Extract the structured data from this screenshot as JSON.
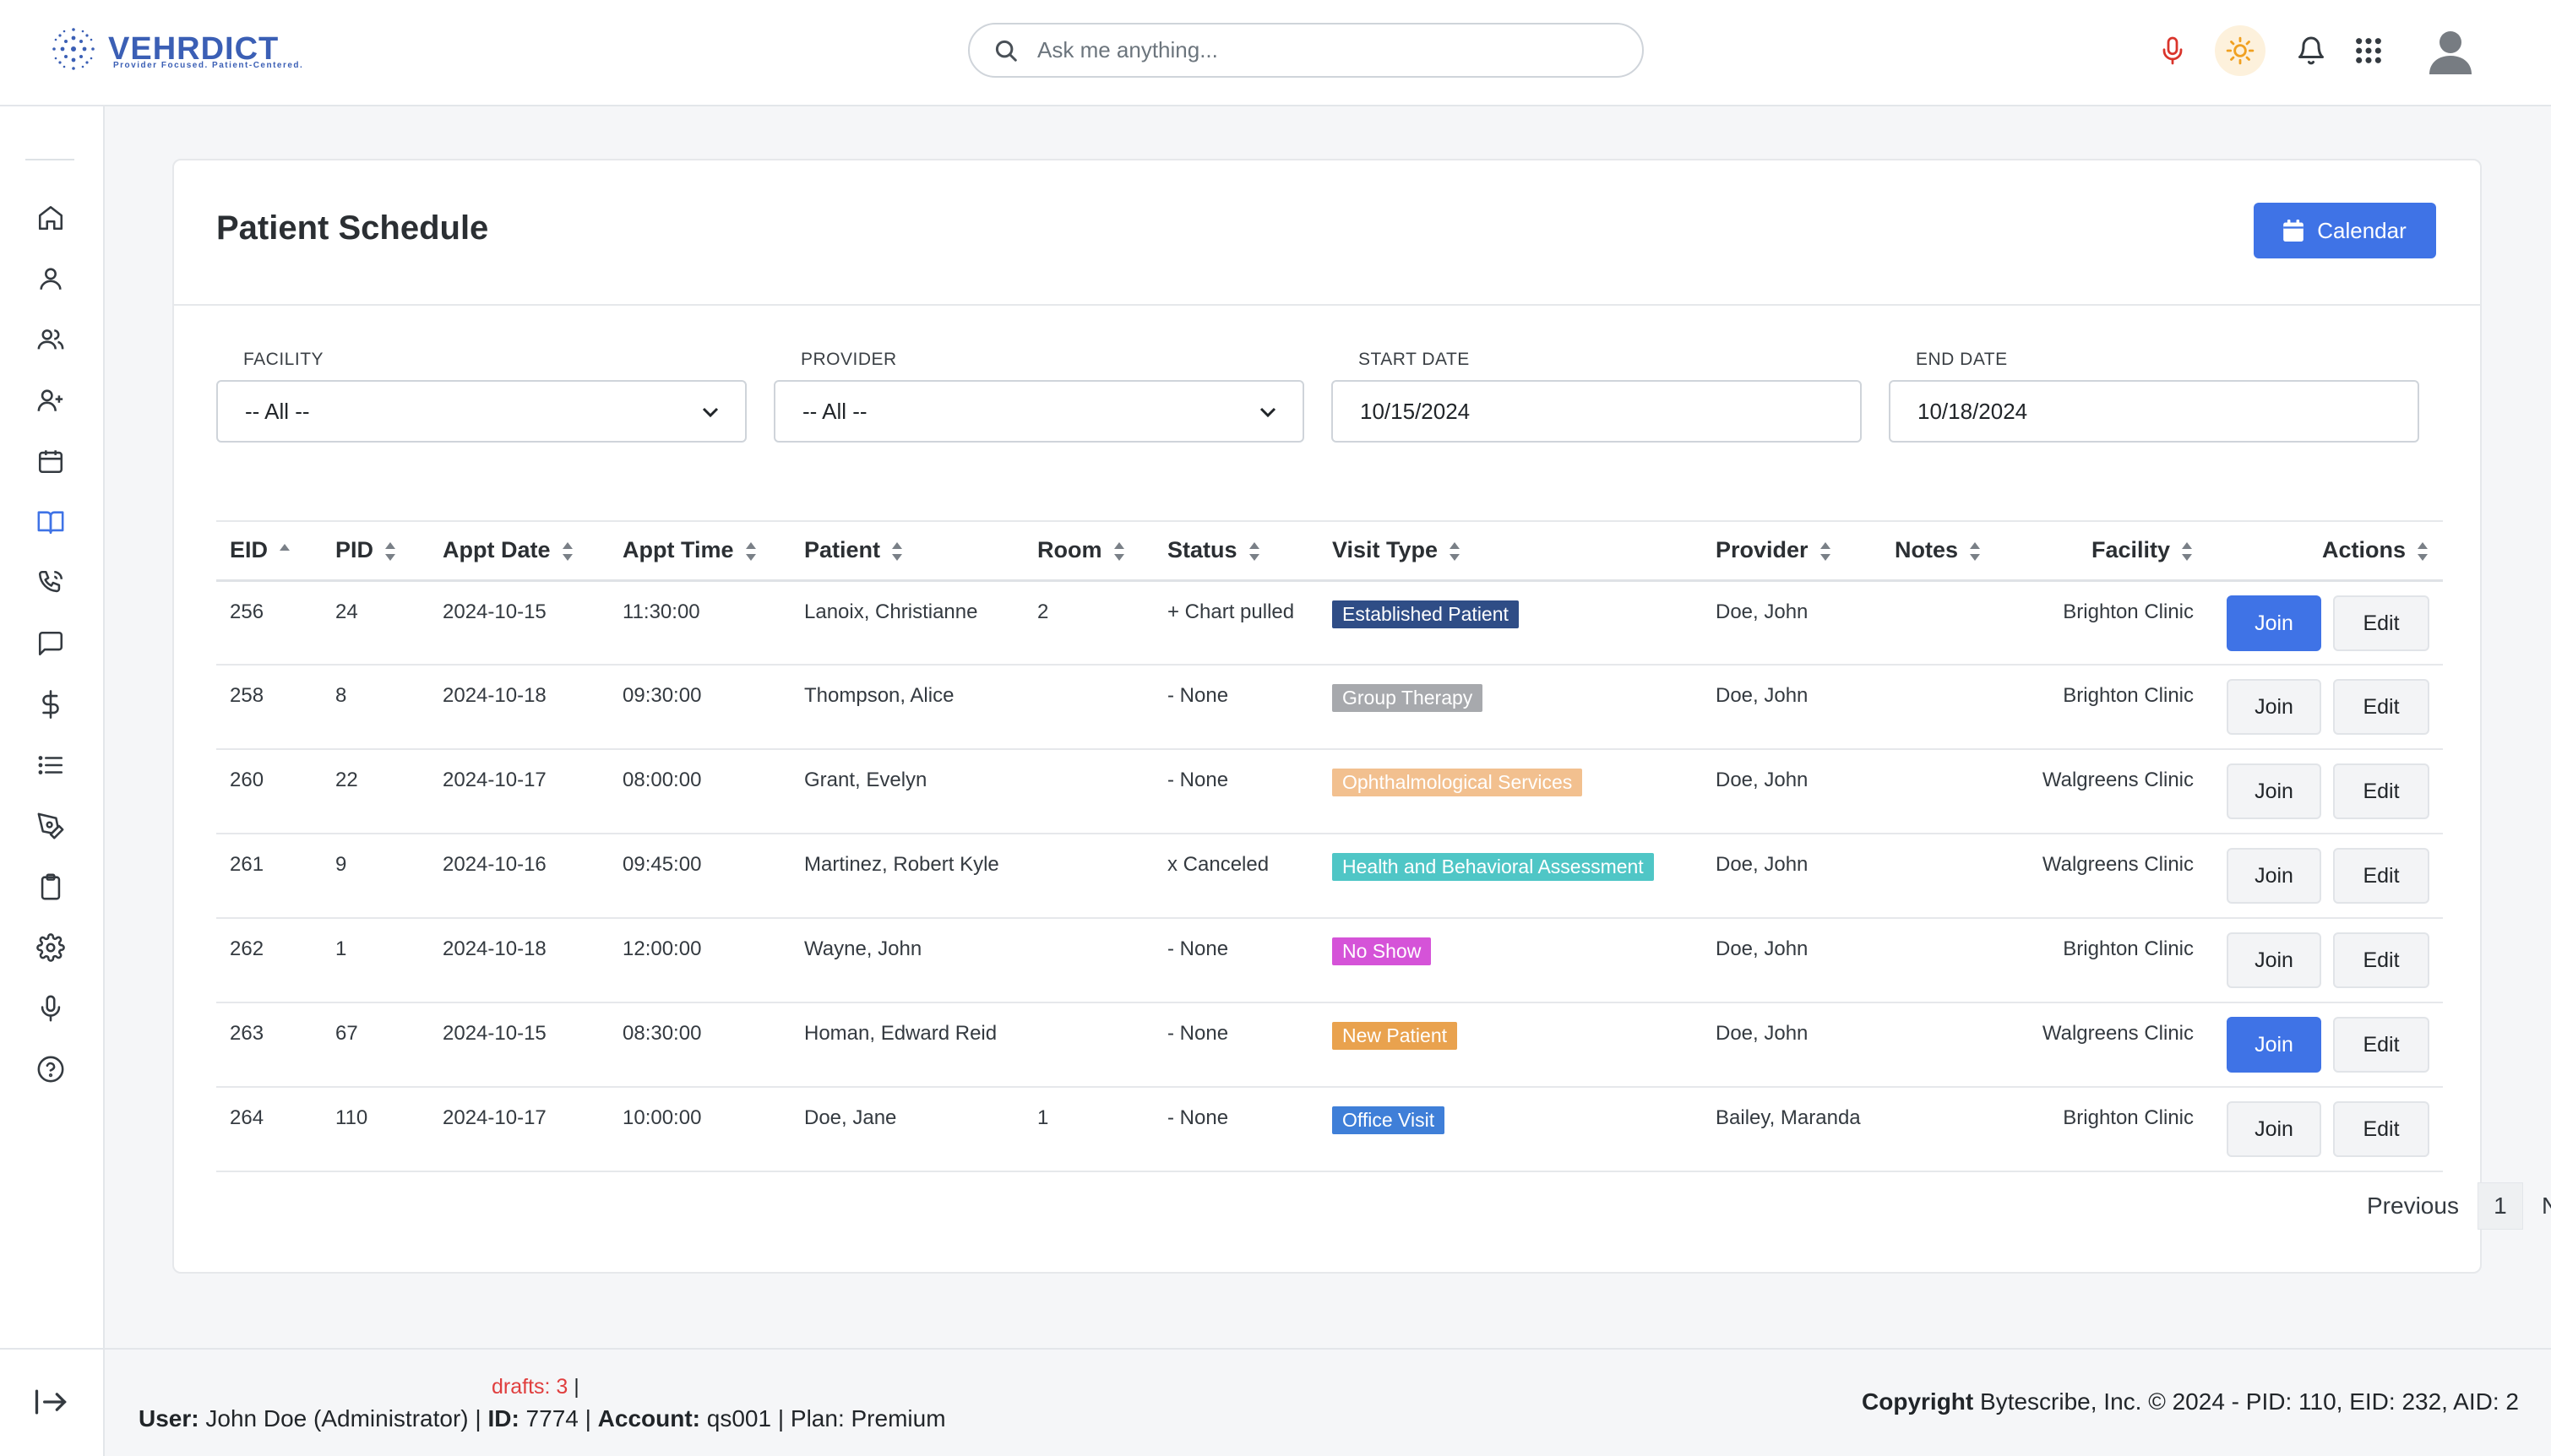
{
  "brand": {
    "name": "VEHRDICT",
    "tagline": "Provider Focused. Patient-Centered."
  },
  "header": {
    "search_placeholder": "Ask me anything...",
    "icons": [
      "microphone-icon",
      "sun-icon",
      "bell-icon",
      "apps-grid-icon",
      "user-avatar-icon"
    ],
    "mic_color": "#d9342b",
    "sun_color": "#f0a020"
  },
  "sidebar": {
    "icons": [
      "home-icon",
      "user-icon",
      "users-icon",
      "user-plus-icon",
      "calendar-icon",
      "book-icon",
      "phone-call-icon",
      "message-icon",
      "dollar-icon",
      "list-icon",
      "pen-tool-icon",
      "clipboard-icon",
      "gear-icon",
      "microphone-icon",
      "help-icon"
    ],
    "active": "book-icon",
    "active_color": "#3f73e6"
  },
  "page": {
    "title": "Patient Schedule",
    "calendar_button": "Calendar"
  },
  "filters": {
    "facility": {
      "label": "FACILITY",
      "value": "-- All --"
    },
    "provider": {
      "label": "PROVIDER",
      "value": "-- All --"
    },
    "start_date": {
      "label": "START DATE",
      "value": "10/15/2024"
    },
    "end_date": {
      "label": "END DATE",
      "value": "10/18/2024"
    }
  },
  "table": {
    "columns": [
      "EID",
      "PID",
      "Appt Date",
      "Appt Time",
      "Patient",
      "Room",
      "Status",
      "Visit Type",
      "Provider",
      "Notes",
      "Facility",
      "Actions"
    ],
    "join_label": "Join",
    "edit_label": "Edit",
    "rows": [
      {
        "eid": "256",
        "pid": "24",
        "date": "2024-10-15",
        "time": "11:30:00",
        "patient": "Lanoix, Christianne",
        "room": "2",
        "status": "+ Chart pulled",
        "visit_type": "Established Patient",
        "visit_color": "#2f4d86",
        "provider": "Doe, John",
        "notes": "",
        "facility": "Brighton Clinic",
        "join_primary": true
      },
      {
        "eid": "258",
        "pid": "8",
        "date": "2024-10-18",
        "time": "09:30:00",
        "patient": "Thompson, Alice",
        "room": "",
        "status": "- None",
        "visit_type": "Group Therapy",
        "visit_color": "#a7a9ad",
        "provider": "Doe, John",
        "notes": "",
        "facility": "Brighton Clinic",
        "join_primary": false
      },
      {
        "eid": "260",
        "pid": "22",
        "date": "2024-10-17",
        "time": "08:00:00",
        "patient": "Grant, Evelyn",
        "room": "",
        "status": "- None",
        "visit_type": "Ophthalmological Services",
        "visit_color": "#f2c08f",
        "provider": "Doe, John",
        "notes": "",
        "facility": "Walgreens Clinic",
        "join_primary": false
      },
      {
        "eid": "261",
        "pid": "9",
        "date": "2024-10-16",
        "time": "09:45:00",
        "patient": "Martinez, Robert Kyle",
        "room": "",
        "status": "x Canceled",
        "visit_type": "Health and Behavioral Assessment",
        "visit_color": "#4fc6c6",
        "provider": "Doe, John",
        "notes": "",
        "facility": "Walgreens Clinic",
        "join_primary": false
      },
      {
        "eid": "262",
        "pid": "1",
        "date": "2024-10-18",
        "time": "12:00:00",
        "patient": "Wayne, John",
        "room": "",
        "status": "- None",
        "visit_type": "No Show",
        "visit_color": "#d553d8",
        "provider": "Doe, John",
        "notes": "",
        "facility": "Brighton Clinic",
        "join_primary": false
      },
      {
        "eid": "263",
        "pid": "67",
        "date": "2024-10-15",
        "time": "08:30:00",
        "patient": "Homan, Edward Reid",
        "room": "",
        "status": "- None",
        "visit_type": "New Patient",
        "visit_color": "#e9a24e",
        "provider": "Doe, John",
        "notes": "",
        "facility": "Walgreens Clinic",
        "join_primary": true
      },
      {
        "eid": "264",
        "pid": "110",
        "date": "2024-10-17",
        "time": "10:00:00",
        "patient": "Doe, Jane",
        "room": "1",
        "status": "- None",
        "visit_type": "Office Visit",
        "visit_color": "#3f7fd8",
        "provider": "Bailey, Maranda",
        "notes": "",
        "facility": "Brighton Clinic",
        "join_primary": false
      }
    ]
  },
  "pagination": {
    "previous": "Previous",
    "page": "1",
    "next": "Next"
  },
  "footer": {
    "drafts": "drafts: 3",
    "drafts_sep": "|",
    "user_label": "User:",
    "user_value": "John Doe (Administrator) |",
    "id_label": "ID:",
    "id_value": "7774 |",
    "account_label": "Account:",
    "account_value": "qs001 | Plan: Premium",
    "copyright_label": "Copyright",
    "copyright_value": "Bytescribe, Inc. © 2024 - PID: 110, EID: 232, AID: 2"
  }
}
